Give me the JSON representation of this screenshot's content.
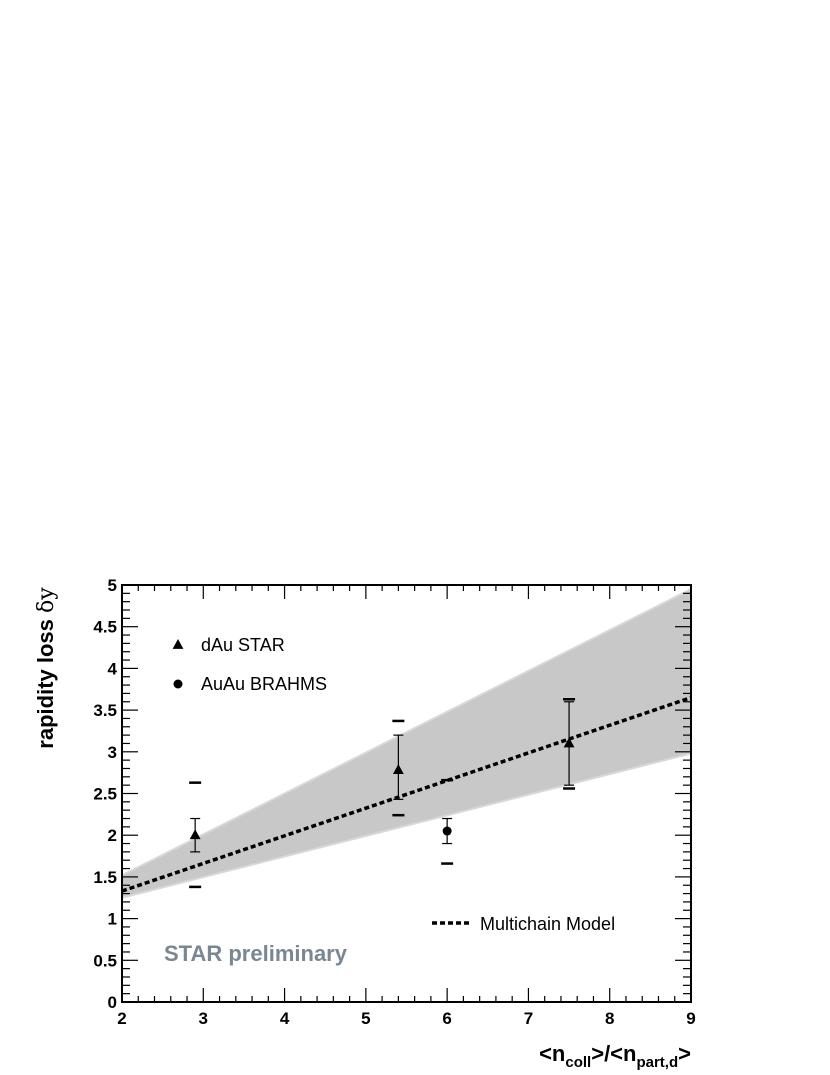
{
  "chart_data": {
    "type": "scatter",
    "xlabel": {
      "main": "<n",
      "sub1": "coll",
      "mid": ">/<n",
      "sub2": "part,d",
      "end": ">"
    },
    "ylabel": {
      "main": "rapidity loss ",
      "symbol": "δy"
    },
    "xlim": [
      2,
      9
    ],
    "ylim": [
      0,
      5
    ],
    "x_ticks": [
      "2",
      "3",
      "4",
      "5",
      "6",
      "7",
      "8",
      "9"
    ],
    "y_ticks": [
      "0",
      "0.5",
      "1",
      "1.5",
      "2",
      "2.5",
      "3",
      "3.5",
      "4",
      "4.5",
      "5"
    ],
    "grid": false,
    "legend_position": "top-left",
    "series": [
      {
        "name": "dAu STAR",
        "marker": "triangle",
        "points": [
          {
            "x": 2.9,
            "y": 2.0,
            "stat_lo": 1.8,
            "stat_hi": 2.2,
            "sys_lo": 1.38,
            "sys_hi": 2.63
          },
          {
            "x": 5.4,
            "y": 2.78,
            "stat_lo": 2.43,
            "stat_hi": 3.2,
            "sys_lo": 2.24,
            "sys_hi": 3.37
          },
          {
            "x": 7.5,
            "y": 3.1,
            "stat_lo": 2.6,
            "stat_hi": 3.6,
            "sys_lo": 2.56,
            "sys_hi": 3.63
          }
        ]
      },
      {
        "name": "AuAu BRAHMS",
        "marker": "circle",
        "points": [
          {
            "x": 6.0,
            "y": 2.05,
            "stat_lo": 1.9,
            "stat_hi": 2.2,
            "sys_lo": 1.66,
            "sys_hi": 2.66
          }
        ]
      }
    ],
    "model": {
      "name": "Multichain Model",
      "line": [
        [
          2.0,
          1.33
        ],
        [
          9.0,
          3.65
        ]
      ],
      "band_upper": [
        [
          2.0,
          1.52
        ],
        [
          9.0,
          4.95
        ]
      ],
      "band_lower": [
        [
          2.0,
          1.25
        ],
        [
          9.0,
          2.98
        ]
      ]
    },
    "annotation": "STAR preliminary",
    "colors": {
      "band": "#c8c8c8",
      "watermark": "#7a8793",
      "markers": "#000000"
    }
  }
}
